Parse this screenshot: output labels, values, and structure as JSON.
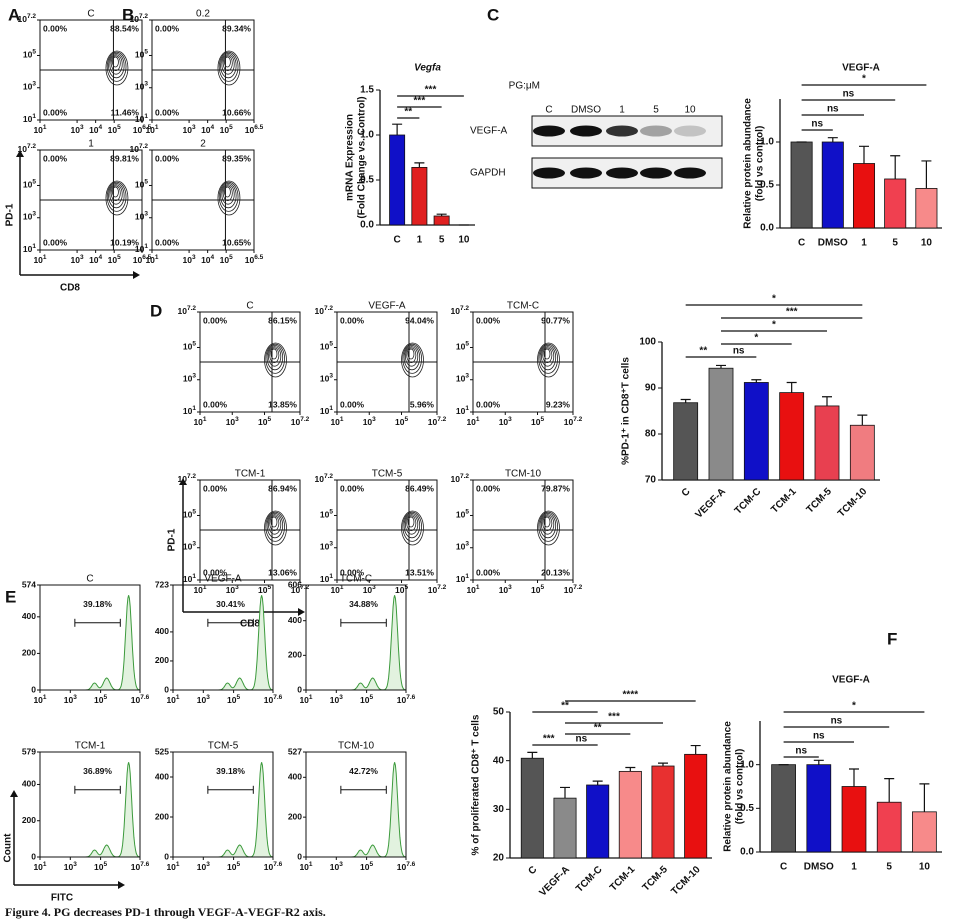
{
  "caption": "Figure 4. PG decreases PD-1 through VEGF-A-VEGF-R2 axis.",
  "panel_labels": [
    "A",
    "B",
    "C",
    "D",
    "E",
    "F"
  ],
  "flow_a": {
    "xlabel": "CD8",
    "ylabel": "PD-1",
    "tick_base": "10",
    "xlim": [
      1,
      6.5
    ],
    "xticks": [
      1,
      3,
      4,
      5,
      6.5
    ],
    "ylim": [
      1,
      7.2
    ],
    "yticks": [
      1,
      3,
      5,
      7.2
    ],
    "plots": [
      {
        "title": "C",
        "quadrants": [
          "0.00%",
          "88.54%",
          "0.00%",
          "11.46%"
        ]
      },
      {
        "title": "0.2",
        "quadrants": [
          "0.00%",
          "89.34%",
          "0.00%",
          "10.66%"
        ]
      },
      {
        "title": "1",
        "quadrants": [
          "0.00%",
          "89.81%",
          "0.00%",
          "10.19%"
        ]
      },
      {
        "title": "2",
        "quadrants": [
          "0.00%",
          "89.35%",
          "0.00%",
          "10.65%"
        ]
      }
    ]
  },
  "flow_d": {
    "xlabel": "CD8",
    "ylabel": "PD-1",
    "tick_base": "10",
    "xlim": [
      1,
      7.2
    ],
    "xticks": [
      1,
      3,
      5,
      7.2
    ],
    "ylim": [
      1,
      7.2
    ],
    "yticks": [
      1,
      3,
      5,
      7.2
    ],
    "plots": [
      {
        "title": "C",
        "quadrants": [
          "0.00%",
          "86.15%",
          "0.00%",
          "13.85%"
        ]
      },
      {
        "title": "VEGF-A",
        "quadrants": [
          "0.00%",
          "94.04%",
          "0.00%",
          "5.96%"
        ]
      },
      {
        "title": "TCM-C",
        "quadrants": [
          "0.00%",
          "90.77%",
          "0.00%",
          "9.23%"
        ]
      },
      {
        "title": "TCM-1",
        "quadrants": [
          "0.00%",
          "86.94%",
          "0.00%",
          "13.06%"
        ]
      },
      {
        "title": "TCM-5",
        "quadrants": [
          "0.00%",
          "86.49%",
          "0.00%",
          "13.51%"
        ]
      },
      {
        "title": "TCM-10",
        "quadrants": [
          "0.00%",
          "79.87%",
          "0.00%",
          "20.13%"
        ]
      }
    ]
  },
  "hist_e": {
    "xlabel": "FITC",
    "ylabel": "Count",
    "tick_base": "10",
    "xlim": [
      1,
      7.6
    ],
    "xticks": [
      1,
      3,
      5,
      7.6
    ],
    "plots": [
      {
        "title": "C",
        "gate": "39.18%",
        "ylim": [
          0,
          574
        ],
        "yticks": [
          0,
          200,
          400,
          574
        ]
      },
      {
        "title": "VEGF-A",
        "gate": "30.41%",
        "ylim": [
          0,
          723
        ],
        "yticks": [
          0,
          200,
          400,
          723
        ]
      },
      {
        "title": "TCM-C",
        "gate": "34.88%",
        "ylim": [
          0,
          606
        ],
        "yticks": [
          0,
          200,
          400,
          606
        ]
      },
      {
        "title": "TCM-1",
        "gate": "36.89%",
        "ylim": [
          0,
          579
        ],
        "yticks": [
          0,
          200,
          400,
          579
        ]
      },
      {
        "title": "TCM-5",
        "gate": "39.18%",
        "ylim": [
          0,
          525
        ],
        "yticks": [
          0,
          200,
          400,
          525
        ]
      },
      {
        "title": "TCM-10",
        "gate": "42.72%",
        "ylim": [
          0,
          527
        ],
        "yticks": [
          0,
          200,
          400,
          527
        ]
      }
    ]
  },
  "blot": {
    "header": "PG:μM",
    "lanes": [
      "C",
      "DMSO",
      "1",
      "5",
      "10"
    ],
    "rows": [
      "VEGF-A",
      "GAPDH"
    ]
  },
  "chart_data": [
    {
      "type": "bar",
      "title": "Vegfa",
      "ylabel": [
        "mRNA Expression",
        "(Fold Change vs. Control)"
      ],
      "categories": [
        "C",
        "1",
        "5",
        "10"
      ],
      "values": [
        1.0,
        0.64,
        0.1,
        0
      ],
      "errors": [
        0.12,
        0.05,
        0.02,
        0
      ],
      "colors": [
        "#1010c8",
        "#e02020",
        "#e02020",
        "#e02020"
      ],
      "ylim": [
        0,
        1.5
      ],
      "yticks": [
        {
          "value": 0,
          "label": "0.0"
        },
        {
          "value": 0.5,
          "label": "0.5"
        },
        {
          "value": 1,
          "label": "1.0"
        },
        {
          "value": 1.5,
          "label": "1.5"
        }
      ],
      "significance": [
        {
          "between": [
            "C",
            "1"
          ],
          "label": "**"
        },
        {
          "between": [
            "C",
            "5"
          ],
          "label": "***"
        },
        {
          "between": [
            "C",
            "10"
          ],
          "label": "***"
        }
      ]
    },
    {
      "type": "bar",
      "title": "VEGF-A",
      "ylabel": [
        "Relative protein abundance",
        "(fold vs control)"
      ],
      "categories": [
        "C",
        "DMSO",
        "1",
        "5",
        "10"
      ],
      "values": [
        1.0,
        1.0,
        0.75,
        0.57,
        0.46
      ],
      "errors": [
        0,
        0.05,
        0.2,
        0.27,
        0.32
      ],
      "colors": [
        "#555555",
        "#1010c8",
        "#e81010",
        "#f04050",
        "#f78a8a"
      ],
      "ylim": [
        0,
        1.5
      ],
      "yticks": [
        {
          "value": 0,
          "label": "0.0"
        },
        {
          "value": 0.5,
          "label": "0.5"
        },
        {
          "value": 1,
          "label": "1.0"
        }
      ],
      "significance": [
        {
          "between": [
            "C",
            "DMSO"
          ],
          "label": "ns"
        },
        {
          "between": [
            "C",
            "1"
          ],
          "label": "ns"
        },
        {
          "between": [
            "C",
            "5"
          ],
          "label": "ns"
        },
        {
          "between": [
            "C",
            "10"
          ],
          "label": "*"
        }
      ]
    },
    {
      "type": "bar",
      "ylabel": [
        "%PD-1⁺ in CD8⁺T cells"
      ],
      "categories": [
        "C",
        "VEGF-A",
        "TCM-C",
        "TCM-1",
        "TCM-5",
        "TCM-10"
      ],
      "values": [
        86.8,
        94.3,
        91.2,
        89.0,
        86.1,
        81.9
      ],
      "errors": [
        0.7,
        0.6,
        0.6,
        2.2,
        2.0,
        2.2
      ],
      "colors": [
        "#555555",
        "#8a8a8a",
        "#1010c8",
        "#e81010",
        "#e84050",
        "#f07c80"
      ],
      "ylim": [
        70,
        100
      ],
      "yticks": [
        70,
        80,
        90,
        100
      ],
      "significance": [
        {
          "between": [
            "C",
            "VEGF-A"
          ],
          "label": "**"
        },
        {
          "between": [
            "VEGF-A",
            "TCM-C"
          ],
          "label": "ns"
        },
        {
          "between": [
            "VEGF-A",
            "TCM-1"
          ],
          "label": "*"
        },
        {
          "between": [
            "VEGF-A",
            "TCM-5"
          ],
          "label": "*"
        },
        {
          "between": [
            "VEGF-A",
            "TCM-10"
          ],
          "label": "***"
        },
        {
          "between": [
            "C",
            "TCM-10"
          ],
          "label": "*"
        }
      ]
    },
    {
      "type": "bar",
      "ylabel": [
        "% of proliferated CD8⁺ T cells"
      ],
      "categories": [
        "C",
        "VEGF-A",
        "TCM-C",
        "TCM-1",
        "TCM-5",
        "TCM-10"
      ],
      "values": [
        40.5,
        32.3,
        35.0,
        37.8,
        38.9,
        41.3
      ],
      "errors": [
        1.2,
        2.2,
        0.8,
        0.8,
        0.6,
        1.8
      ],
      "colors": [
        "#555555",
        "#8a8a8a",
        "#1010c8",
        "#f78a8a",
        "#e83030",
        "#e81010"
      ],
      "ylim": [
        20,
        50
      ],
      "yticks": [
        20,
        30,
        40,
        50
      ],
      "significance": [
        {
          "between": [
            "VEGF-A",
            "TCM-C"
          ],
          "label": "ns"
        },
        {
          "between": [
            "C",
            "VEGF-A"
          ],
          "label": "***"
        },
        {
          "between": [
            "VEGF-A",
            "TCM-1"
          ],
          "label": "**"
        },
        {
          "between": [
            "VEGF-A",
            "TCM-5"
          ],
          "label": "***"
        },
        {
          "between": [
            "C",
            "TCM-C"
          ],
          "label": "**"
        },
        {
          "between": [
            "VEGF-A",
            "TCM-10"
          ],
          "label": "****"
        }
      ]
    },
    {
      "type": "bar",
      "title": "VEGF-A",
      "ylabel": [
        "Relative protein abundance",
        "(fold vs control)"
      ],
      "categories": [
        "C",
        "DMSO",
        "1",
        "5",
        "10"
      ],
      "values": [
        1.0,
        1.0,
        0.75,
        0.57,
        0.46
      ],
      "errors": [
        0,
        0.05,
        0.2,
        0.27,
        0.32
      ],
      "colors": [
        "#555555",
        "#1010c8",
        "#e81010",
        "#f04050",
        "#f78a8a"
      ],
      "ylim": [
        0,
        1.5
      ],
      "yticks": [
        {
          "value": 0,
          "label": "0.0"
        },
        {
          "value": 0.5,
          "label": "0.5"
        },
        {
          "value": 1,
          "label": "1.0"
        }
      ],
      "significance": [
        {
          "between": [
            "C",
            "DMSO"
          ],
          "label": "ns"
        },
        {
          "between": [
            "C",
            "1"
          ],
          "label": "ns"
        },
        {
          "between": [
            "C",
            "5"
          ],
          "label": "ns"
        },
        {
          "between": [
            "C",
            "10"
          ],
          "label": "*"
        }
      ]
    }
  ]
}
